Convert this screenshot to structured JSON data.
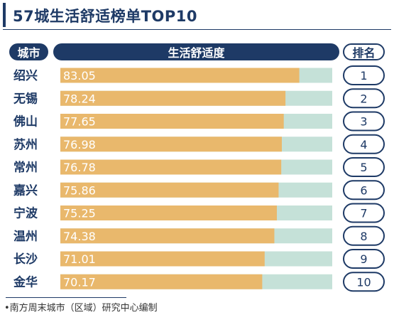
{
  "title": "57城生活舒适榜单TOP10",
  "headers": {
    "city": "城市",
    "value": "生活舒适度",
    "rank": "排名"
  },
  "source": "•南方周末城市（区域）研究中心编制",
  "colors": {
    "navy": "#1e3a66",
    "bar": "#e9b86c",
    "track": "#c5e1d8",
    "bar_text": "#ffffff"
  },
  "chart_data": {
    "type": "bar",
    "orientation": "horizontal",
    "categories": [
      "绍兴",
      "无锡",
      "佛山",
      "苏州",
      "常州",
      "嘉兴",
      "宁波",
      "温州",
      "长沙",
      "金华"
    ],
    "values": [
      83.05,
      78.24,
      77.65,
      76.98,
      76.78,
      75.86,
      75.25,
      74.38,
      71.01,
      70.17
    ],
    "ranks": [
      "1",
      "2",
      "3",
      "4",
      "5",
      "6",
      "7",
      "8",
      "9",
      "10"
    ],
    "value_labels": [
      "83.05",
      "78.24",
      "77.65",
      "76.98",
      "76.78",
      "75.86",
      "75.25",
      "74.38",
      "71.01",
      "70.17"
    ],
    "xlim": [
      0,
      94.5
    ],
    "title": "57城生活舒适榜单TOP10",
    "ylabel": "城市",
    "xlabel": "生活舒适度"
  }
}
